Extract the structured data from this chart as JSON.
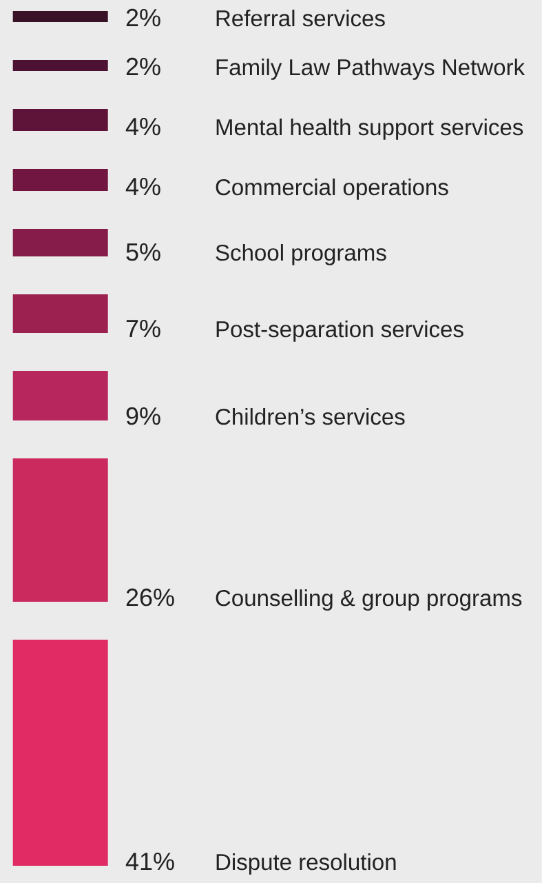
{
  "chart_data": {
    "type": "other",
    "categories": [
      "Referral services",
      "Family Law Pathways Network",
      "Mental health support services",
      "Commercial operations",
      "School programs",
      "Post-separation services",
      "Children’s services",
      "Counselling & group programs",
      "Dispute resolution"
    ],
    "values": [
      2,
      2,
      4,
      4,
      5,
      7,
      9,
      26,
      41
    ],
    "value_labels": [
      "2%",
      "2%",
      "4%",
      "4%",
      "5%",
      "7%",
      "9%",
      "26%",
      "41%"
    ],
    "colors": [
      "#3a1228",
      "#4d1233",
      "#5e1339",
      "#701640",
      "#861c4a",
      "#9c2150",
      "#b7265c",
      "#cb2a5e",
      "#e02b64"
    ]
  }
}
